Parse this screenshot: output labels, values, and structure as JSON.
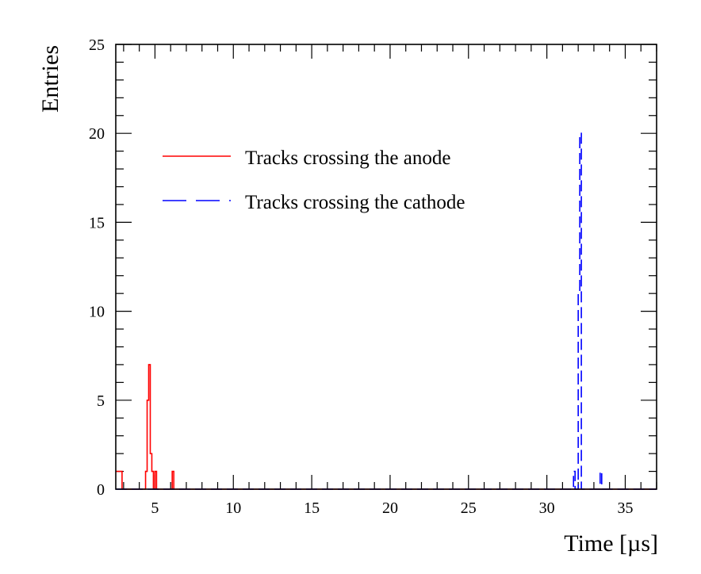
{
  "chart_data": {
    "type": "histogram",
    "title": "",
    "xlabel": "Time [µs]",
    "ylabel": "Entries",
    "xlim": [
      2.5,
      37
    ],
    "ylim": [
      0,
      25
    ],
    "xticks": [
      5,
      10,
      15,
      20,
      25,
      30,
      35
    ],
    "xtick_labels": [
      "5",
      "10",
      "15",
      "20",
      "25",
      "30",
      "35"
    ],
    "yticks": [
      0,
      5,
      10,
      15,
      20,
      25
    ],
    "ytick_labels": [
      "0",
      "5",
      "10",
      "15",
      "20",
      "25"
    ],
    "grid": false,
    "legend_position": "upper-left",
    "series": [
      {
        "name": "Tracks crossing the anode",
        "color": "#ff0000",
        "line_style": "solid",
        "bin_edges": [
          2.5,
          2.7,
          2.9,
          4.4,
          4.5,
          4.6,
          4.7,
          4.8,
          4.9,
          5.0,
          5.1,
          6.1,
          6.2,
          37
        ],
        "counts": [
          1,
          1,
          0,
          1,
          5,
          7,
          2,
          1,
          0,
          1,
          0,
          1,
          0
        ]
      },
      {
        "name": "Tracks crossing the cathode",
        "color": "#0000ff",
        "line_style": "dashed",
        "bin_edges": [
          2.5,
          31.7,
          31.8,
          31.9,
          32.0,
          32.1,
          32.2,
          32.3,
          33.4,
          33.5,
          37
        ],
        "counts": [
          0,
          1,
          0,
          0,
          11,
          20,
          0,
          0,
          1,
          0
        ]
      }
    ]
  }
}
